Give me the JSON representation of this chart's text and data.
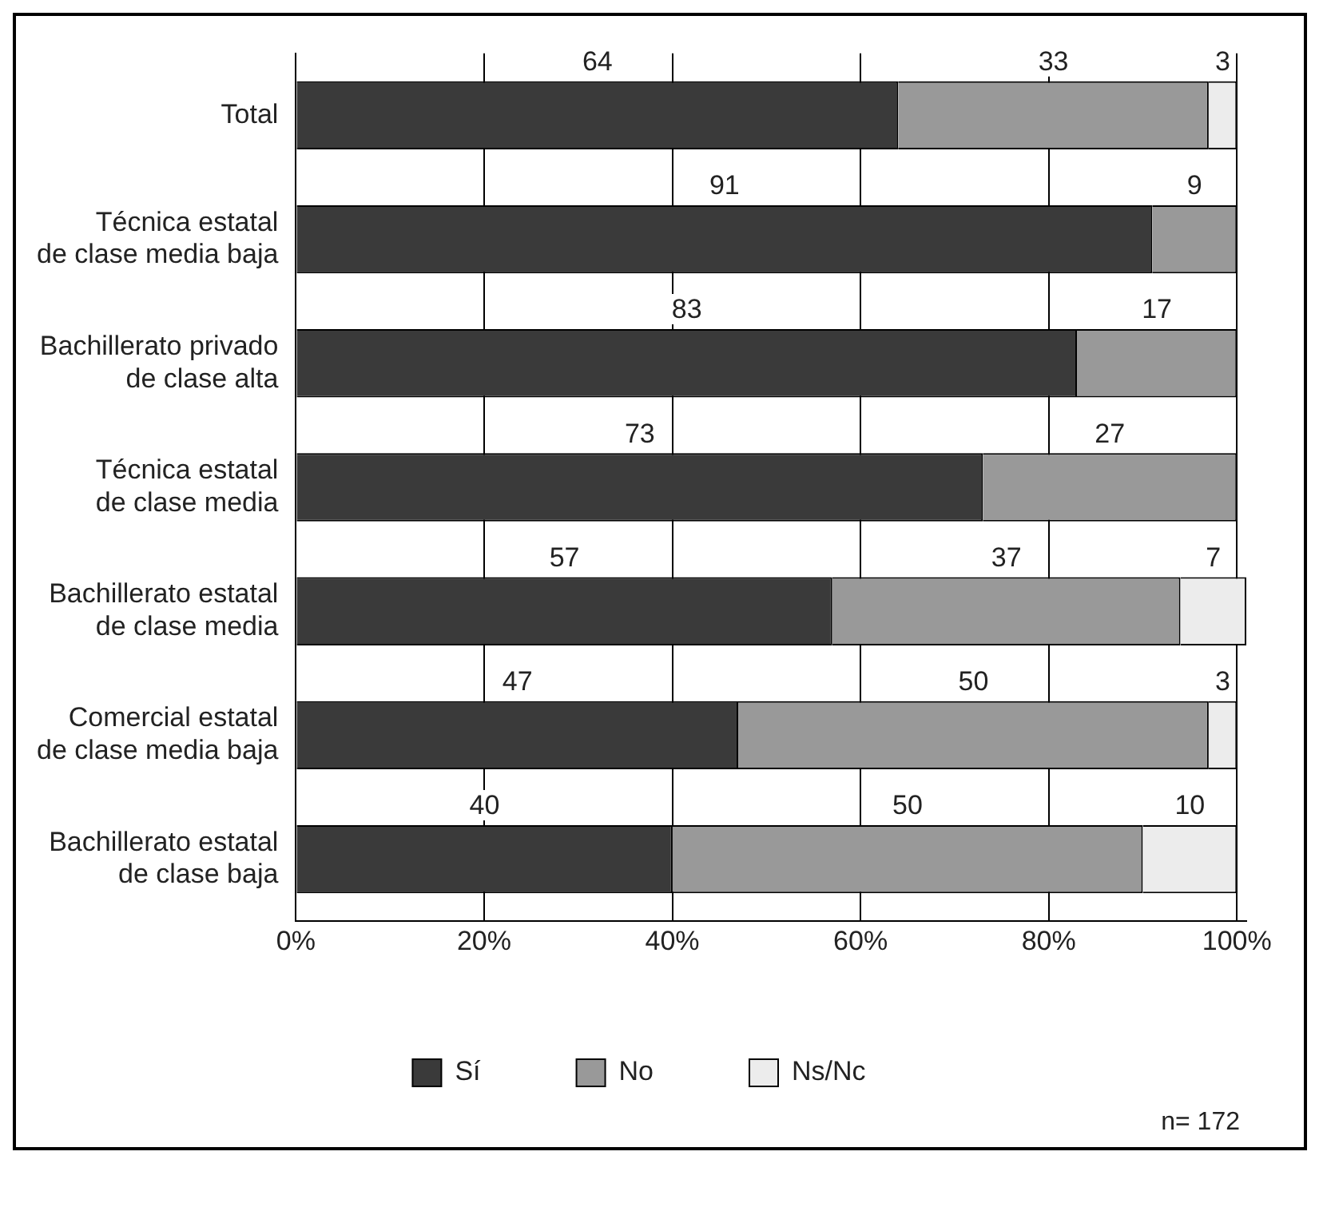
{
  "chart_data": {
    "type": "bar",
    "orientation": "horizontal",
    "stacked": true,
    "categories": [
      "Total",
      "Técnica estatal\nde clase media baja",
      "Bachillerato privado\nde clase alta",
      "Técnica estatal\nde clase media",
      "Bachillerato estatal\nde clase media",
      "Comercial estatal\nde clase media baja",
      "Bachillerato estatal\nde clase baja"
    ],
    "series": [
      {
        "name": "Sí",
        "color": "#3a3a3a",
        "values": [
          64,
          91,
          83,
          73,
          57,
          47,
          40
        ]
      },
      {
        "name": "No",
        "color": "#999999",
        "values": [
          33,
          9,
          17,
          27,
          37,
          50,
          50
        ]
      },
      {
        "name": "Ns/Nc",
        "color": "#ececec",
        "values": [
          3,
          null,
          null,
          null,
          7,
          3,
          10
        ]
      }
    ],
    "xlim": [
      0,
      101
    ],
    "xticks": [
      {
        "value": 0,
        "label": "0%"
      },
      {
        "value": 20,
        "label": "20%"
      },
      {
        "value": 40,
        "label": "40%"
      },
      {
        "value": 60,
        "label": "60%"
      },
      {
        "value": 80,
        "label": "80%"
      },
      {
        "value": 100,
        "label": "100%"
      }
    ],
    "grid": "x",
    "legend": "bottom",
    "data_labels": true,
    "annotations": [
      "n= 172"
    ]
  }
}
